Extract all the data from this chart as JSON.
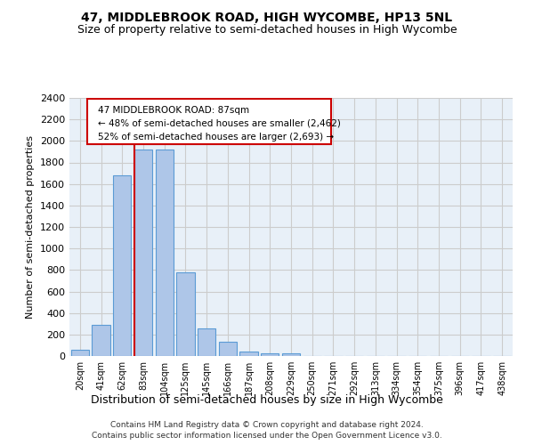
{
  "title": "47, MIDDLEBROOK ROAD, HIGH WYCOMBE, HP13 5NL",
  "subtitle": "Size of property relative to semi-detached houses in High Wycombe",
  "xlabel": "Distribution of semi-detached houses by size in High Wycombe",
  "ylabel": "Number of semi-detached properties",
  "footer_line1": "Contains HM Land Registry data © Crown copyright and database right 2024.",
  "footer_line2": "Contains public sector information licensed under the Open Government Licence v3.0.",
  "categories": [
    "20sqm",
    "41sqm",
    "62sqm",
    "83sqm",
    "104sqm",
    "125sqm",
    "145sqm",
    "166sqm",
    "187sqm",
    "208sqm",
    "229sqm",
    "250sqm",
    "271sqm",
    "292sqm",
    "313sqm",
    "334sqm",
    "354sqm",
    "375sqm",
    "396sqm",
    "417sqm",
    "438sqm"
  ],
  "values": [
    55,
    290,
    1680,
    1920,
    1920,
    775,
    255,
    130,
    40,
    25,
    22,
    0,
    0,
    0,
    0,
    0,
    0,
    0,
    0,
    0,
    0
  ],
  "bar_color": "#aec6e8",
  "bar_edgecolor": "#5b9bd5",
  "grid_color": "#cccccc",
  "bg_color": "#e8f0f8",
  "property_line_value": 3,
  "property_sqm": 87,
  "annotation_text_line1": "47 MIDDLEBROOK ROAD: 87sqm",
  "annotation_text_line2": "← 48% of semi-detached houses are smaller (2,462)",
  "annotation_text_line3": "52% of semi-detached houses are larger (2,693) →",
  "annotation_box_color": "#cc0000",
  "ylim": [
    0,
    2400
  ],
  "yticks": [
    0,
    200,
    400,
    600,
    800,
    1000,
    1200,
    1400,
    1600,
    1800,
    2000,
    2200,
    2400
  ]
}
